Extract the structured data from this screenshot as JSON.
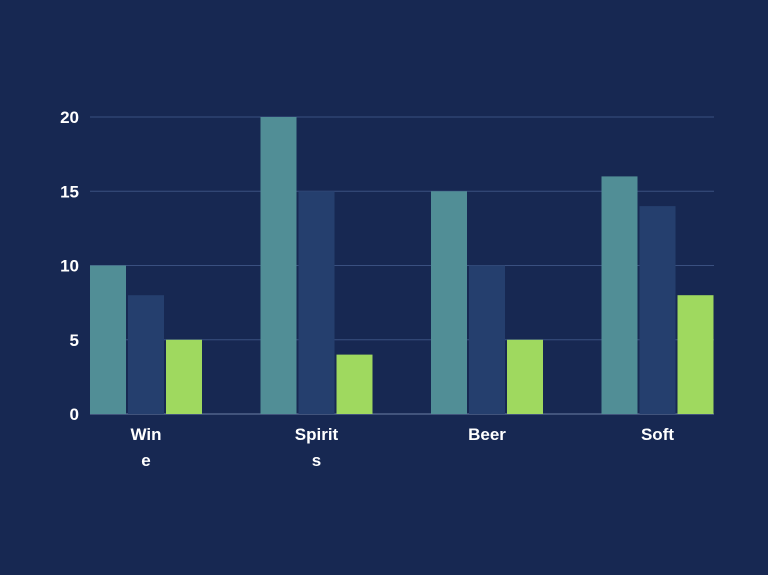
{
  "chart_data": {
    "type": "bar",
    "title": "",
    "xlabel": "",
    "ylabel": "",
    "categories": [
      "Wine",
      "Spirits",
      "Beer",
      "Soft"
    ],
    "category_label_lines": [
      [
        "Win",
        "e"
      ],
      [
        "Spirit",
        "s"
      ],
      [
        "Beer"
      ],
      [
        "Soft"
      ]
    ],
    "series": [
      {
        "values": [
          10,
          20,
          15,
          16
        ],
        "color": "#518e96"
      },
      {
        "values": [
          8,
          15,
          10,
          14
        ],
        "color": "#253f6e"
      },
      {
        "values": [
          5,
          4,
          5,
          8
        ],
        "color": "#9fd95f"
      }
    ],
    "ylim": [
      0,
      20
    ],
    "yticks": [
      0,
      5,
      10,
      15,
      20
    ],
    "grid": true,
    "legend": "none",
    "colors": {
      "background": "#172852",
      "gridline": "#3a5080",
      "axis": "#6c7fa6",
      "text": "#ffffff"
    }
  }
}
